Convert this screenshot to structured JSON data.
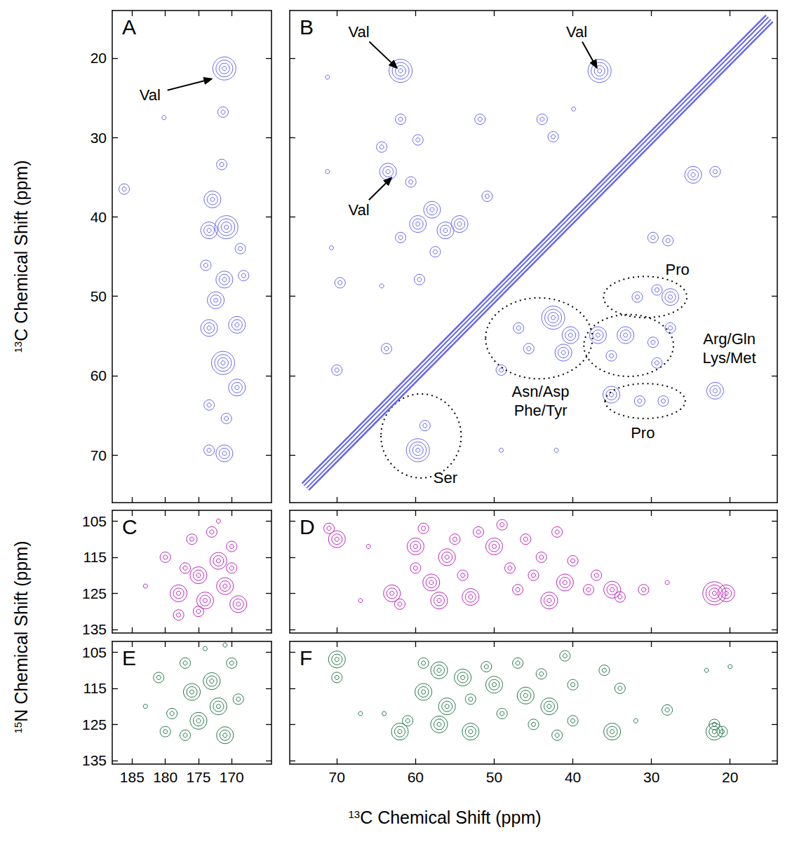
{
  "chart_data": [
    {
      "type": "contour",
      "title": "A",
      "color": "#6666ee",
      "tick_labels": "y",
      "ylabel": "13C Chemical Shift (ppm)",
      "xlim": [
        188,
        164
      ],
      "xticks": [
        185,
        180,
        175,
        170
      ],
      "ylim": [
        76,
        14
      ],
      "yticks": [
        20,
        30,
        40,
        50,
        60,
        70
      ],
      "peaks": [
        [
          171.1,
          21.3,
          4
        ],
        [
          186.2,
          36.5,
          2
        ],
        [
          180.2,
          27.5,
          1
        ],
        [
          171.3,
          26.8,
          2
        ],
        [
          171.5,
          33.4,
          2
        ],
        [
          172.9,
          37.8,
          3
        ],
        [
          170.8,
          41.3,
          4
        ],
        [
          173.4,
          41.7,
          3
        ],
        [
          168.7,
          44.0,
          2
        ],
        [
          173.9,
          46.1,
          2
        ],
        [
          168.2,
          47.4,
          2
        ],
        [
          171.1,
          47.9,
          3
        ],
        [
          172.4,
          50.5,
          3
        ],
        [
          169.2,
          53.6,
          3
        ],
        [
          173.4,
          54.0,
          3
        ],
        [
          171.3,
          58.4,
          4
        ],
        [
          169.2,
          61.5,
          3
        ],
        [
          173.4,
          63.7,
          2
        ],
        [
          170.8,
          65.4,
          2
        ],
        [
          171.1,
          69.8,
          3
        ],
        [
          173.4,
          69.4,
          2
        ]
      ],
      "annotations": [
        {
          "text": "Val",
          "x": 182.3,
          "y": 24.6,
          "arrow_to": [
            172.9,
            22.6
          ]
        }
      ]
    },
    {
      "type": "contour",
      "title": "B",
      "color": "#6666ee",
      "tick_labels": false,
      "xlim": [
        76,
        14
      ],
      "xticks": [
        70,
        60,
        50,
        40,
        30,
        20
      ],
      "ylim": [
        76,
        14
      ],
      "yticks": [
        20,
        30,
        40,
        50,
        60,
        70
      ],
      "diagonal": [
        [
          74,
          74
        ],
        [
          15,
          15
        ]
      ],
      "peaks": [
        [
          61.9,
          21.6,
          4
        ],
        [
          36.6,
          21.6,
          4
        ],
        [
          63.5,
          34.3,
          3
        ],
        [
          71.2,
          34.3,
          1
        ],
        [
          64.3,
          31.2,
          2
        ],
        [
          70.7,
          43.9,
          1
        ],
        [
          69.6,
          48.3,
          2
        ],
        [
          64.3,
          48.7,
          1
        ],
        [
          59.5,
          47.9,
          2
        ],
        [
          61.9,
          27.7,
          2
        ],
        [
          59.7,
          30.3,
          2
        ],
        [
          60.6,
          35.6,
          2
        ],
        [
          57.9,
          39.1,
          3
        ],
        [
          59.7,
          40.9,
          3
        ],
        [
          56.2,
          41.7,
          3
        ],
        [
          54.4,
          40.9,
          3
        ],
        [
          57.5,
          44.4,
          2
        ],
        [
          61.9,
          42.6,
          2
        ],
        [
          51.8,
          27.7,
          2
        ],
        [
          50.9,
          37.4,
          2
        ],
        [
          43.9,
          27.7,
          2
        ],
        [
          42.5,
          29.9,
          2
        ],
        [
          39.9,
          26.4,
          1
        ],
        [
          24.7,
          34.7,
          3
        ],
        [
          21.9,
          34.3,
          2
        ],
        [
          29.8,
          42.6,
          2
        ],
        [
          27.9,
          43.0,
          2
        ],
        [
          29.3,
          49.2,
          2
        ],
        [
          27.6,
          50.1,
          3
        ],
        [
          31.8,
          50.1,
          2
        ],
        [
          36.8,
          54.9,
          3
        ],
        [
          33.3,
          54.9,
          3
        ],
        [
          29.8,
          55.8,
          2
        ],
        [
          27.6,
          54.0,
          2
        ],
        [
          35.1,
          57.5,
          2
        ],
        [
          29.3,
          58.4,
          2
        ],
        [
          42.5,
          52.7,
          4
        ],
        [
          46.9,
          54.0,
          2
        ],
        [
          45.6,
          56.6,
          2
        ],
        [
          41.2,
          57.1,
          3
        ],
        [
          40.3,
          54.9,
          3
        ],
        [
          49.1,
          59.3,
          2
        ],
        [
          35.1,
          62.4,
          3
        ],
        [
          31.5,
          63.2,
          2
        ],
        [
          28.5,
          63.2,
          2
        ],
        [
          21.9,
          61.9,
          3
        ],
        [
          59.7,
          69.4,
          4
        ],
        [
          58.8,
          66.3,
          2
        ],
        [
          70.0,
          59.3,
          2
        ],
        [
          63.7,
          56.6,
          2
        ],
        [
          49.1,
          69.4,
          1
        ],
        [
          42.1,
          69.4,
          1
        ],
        [
          71.2,
          22.4,
          1
        ]
      ],
      "annotations": [
        {
          "text": "Val",
          "x": 67.2,
          "y": 16.7,
          "arrow_to": [
            62.3,
            21.3
          ]
        },
        {
          "text": "Val",
          "x": 39.5,
          "y": 16.7,
          "arrow_to": [
            36.9,
            21.3
          ]
        },
        {
          "text": "Val",
          "x": 67.2,
          "y": 39.1,
          "arrow_to": [
            63.0,
            35.0
          ]
        }
      ],
      "regions": [
        {
          "text": "Pro",
          "x": 26.7,
          "y": 46.6,
          "center": [
            30.8,
            50.1
          ],
          "radii": [
            5.3,
            2.6
          ]
        },
        {
          "text": [
            "Arg/Gln",
            "Lys/Met"
          ],
          "x": 20.1,
          "y": 56.6,
          "center": [
            32.9,
            56.2
          ],
          "radii": [
            5.7,
            3.9
          ]
        },
        {
          "text": [
            "Asn/Asp",
            "Phe/Tyr"
          ],
          "x": 44.1,
          "y": 63.2,
          "center": [
            44.3,
            55.3
          ],
          "radii": [
            6.8,
            5.1
          ]
        },
        {
          "text": "Pro",
          "x": 31.1,
          "y": 67.2,
          "center": [
            30.8,
            63.2
          ],
          "radii": [
            5.1,
            2.2
          ]
        },
        {
          "text": "Ser",
          "x": 56.2,
          "y": 72.9,
          "center": [
            59.3,
            67.6
          ],
          "radii": [
            5.1,
            5.3
          ]
        }
      ]
    },
    {
      "type": "contour",
      "title": "C",
      "color": "#bb22bb",
      "tick_labels": "y",
      "ylabel": "15N Chemical Shift (ppm)",
      "xlim": [
        188,
        164
      ],
      "xticks": [
        185,
        180,
        175,
        170
      ],
      "ylim": [
        136,
        102
      ],
      "yticks": [
        105,
        115,
        125,
        135
      ],
      "peaks": [
        [
          180,
          115,
          2
        ],
        [
          178,
          125,
          3
        ],
        [
          176,
          110,
          2
        ],
        [
          175,
          120,
          3
        ],
        [
          174,
          127,
          3
        ],
        [
          173,
          108,
          2
        ],
        [
          172,
          116,
          3
        ],
        [
          171,
          123,
          3
        ],
        [
          170,
          112,
          2
        ],
        [
          169,
          128,
          3
        ],
        [
          177,
          118,
          2
        ],
        [
          172,
          105,
          1
        ],
        [
          183,
          123,
          1
        ],
        [
          170,
          118,
          2
        ],
        [
          175,
          130,
          2
        ],
        [
          178,
          131,
          2
        ]
      ]
    },
    {
      "type": "contour",
      "title": "D",
      "color": "#bb22bb",
      "tick_labels": false,
      "xlim": [
        76,
        14
      ],
      "xticks": [
        70,
        60,
        50,
        40,
        30,
        20
      ],
      "ylim": [
        136,
        102
      ],
      "yticks": [
        105,
        115,
        125,
        135
      ],
      "peaks": [
        [
          70,
          110,
          3
        ],
        [
          71,
          107,
          2
        ],
        [
          66,
          112,
          1
        ],
        [
          67,
          127,
          1
        ],
        [
          63,
          125,
          3
        ],
        [
          62,
          128,
          2
        ],
        [
          60,
          112,
          3
        ],
        [
          60,
          118,
          2
        ],
        [
          59,
          107,
          2
        ],
        [
          58,
          122,
          3
        ],
        [
          57,
          127,
          3
        ],
        [
          56,
          115,
          3
        ],
        [
          55,
          110,
          2
        ],
        [
          54,
          120,
          2
        ],
        [
          53,
          126,
          3
        ],
        [
          52,
          108,
          2
        ],
        [
          50,
          112,
          3
        ],
        [
          49,
          106,
          2
        ],
        [
          48,
          118,
          2
        ],
        [
          47,
          124,
          2
        ],
        [
          46,
          110,
          2
        ],
        [
          45,
          120,
          2
        ],
        [
          44,
          115,
          2
        ],
        [
          43,
          127,
          3
        ],
        [
          42,
          108,
          2
        ],
        [
          41,
          122,
          3
        ],
        [
          40,
          116,
          2
        ],
        [
          38,
          124,
          2
        ],
        [
          37,
          120,
          2
        ],
        [
          35,
          124,
          3
        ],
        [
          34,
          126,
          2
        ],
        [
          31,
          124,
          2
        ],
        [
          28,
          122,
          1
        ],
        [
          22,
          125,
          4
        ],
        [
          20.5,
          125,
          3
        ]
      ]
    },
    {
      "type": "contour",
      "title": "E",
      "color": "#22774a",
      "xlim": [
        188,
        164
      ],
      "xticks": [
        185,
        180,
        175,
        170
      ],
      "ylim": [
        136,
        102
      ],
      "yticks": [
        105,
        115,
        125,
        135
      ],
      "peaks": [
        [
          181,
          112,
          2
        ],
        [
          179,
          122,
          2
        ],
        [
          177,
          108,
          2
        ],
        [
          176,
          116,
          3
        ],
        [
          175,
          124,
          3
        ],
        [
          173,
          113,
          3
        ],
        [
          172,
          120,
          3
        ],
        [
          171,
          128,
          3
        ],
        [
          170,
          108,
          2
        ],
        [
          174,
          104,
          1
        ],
        [
          183,
          120,
          1
        ],
        [
          177,
          128,
          2
        ],
        [
          169,
          118,
          2
        ],
        [
          180,
          127,
          2
        ],
        [
          171,
          103,
          1
        ]
      ]
    },
    {
      "type": "contour",
      "title": "F",
      "color": "#22774a",
      "tick_labels": "x",
      "xlabel": "13C Chemical Shift (ppm)",
      "xlim": [
        76,
        14
      ],
      "xticks": [
        70,
        60,
        50,
        40,
        30,
        20
      ],
      "ylim": [
        136,
        102
      ],
      "yticks": [
        105,
        115,
        125,
        135
      ],
      "peaks": [
        [
          70,
          107,
          3
        ],
        [
          70,
          112,
          2
        ],
        [
          67,
          122,
          1
        ],
        [
          64,
          122,
          1
        ],
        [
          62,
          127,
          3
        ],
        [
          61,
          124,
          2
        ],
        [
          59,
          108,
          2
        ],
        [
          59,
          116,
          3
        ],
        [
          57,
          110,
          3
        ],
        [
          57,
          125,
          3
        ],
        [
          56,
          120,
          3
        ],
        [
          54,
          112,
          3
        ],
        [
          53,
          118,
          2
        ],
        [
          53,
          127,
          3
        ],
        [
          51,
          109,
          2
        ],
        [
          50,
          114,
          3
        ],
        [
          49,
          122,
          2
        ],
        [
          47,
          108,
          2
        ],
        [
          46,
          117,
          3
        ],
        [
          45,
          125,
          2
        ],
        [
          44,
          111,
          2
        ],
        [
          43,
          120,
          3
        ],
        [
          42,
          128,
          2
        ],
        [
          41,
          106,
          2
        ],
        [
          40,
          114,
          2
        ],
        [
          40,
          124,
          2
        ],
        [
          36,
          110,
          2
        ],
        [
          35,
          127,
          3
        ],
        [
          34,
          115,
          2
        ],
        [
          32,
          124,
          1
        ],
        [
          28,
          121,
          2
        ],
        [
          22,
          127,
          3
        ],
        [
          22,
          125,
          2
        ],
        [
          21,
          127,
          2
        ],
        [
          23,
          110,
          1
        ],
        [
          20,
          109,
          1
        ]
      ]
    }
  ]
}
